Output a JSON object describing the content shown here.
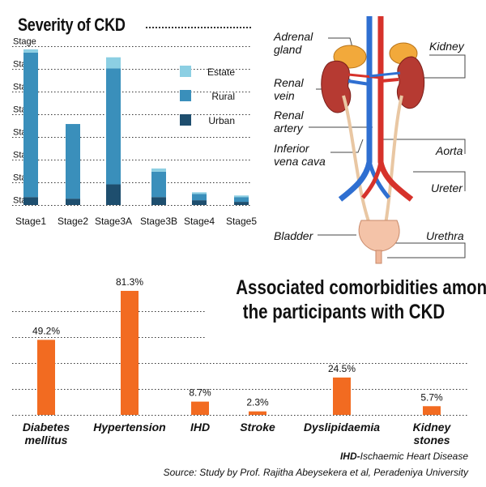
{
  "ckd_title": "Severity of CKD",
  "comorb_title_line1": "Associated comorbidities among",
  "comorb_title_line2": "the participants with CKD",
  "anatomy_labels": {
    "adrenal": "Adrenal",
    "gland": "gland",
    "kidney": "Kidney",
    "renal1": "Renal",
    "vein": "vein",
    "renal2": "Renal",
    "artery": "artery",
    "inferior": "Inferior",
    "vena_cava": "vena cava",
    "aorta": "Aorta",
    "ureter": "Ureter",
    "bladder": "Bladder",
    "urethra": "Urethra"
  },
  "footnote": {
    "ihd_abbr": "IHD-",
    "ihd_def": "Ischaemic Heart Disease",
    "source": "Source: Study by Prof. Rajitha Abeysekera et al, Peradeniya University"
  },
  "colors": {
    "estate": "#8ccfe3",
    "rural": "#3a8fbb",
    "urban": "#1e4e6e",
    "comorbidity": "#f26b21",
    "grid": "#333333"
  },
  "chart_data": [
    {
      "type": "bar",
      "stacked": true,
      "title": "Severity of CKD",
      "categories": [
        "Stage1",
        "Stage2",
        "Stage3A",
        "Stage3B",
        "Stage4",
        "Stage5"
      ],
      "series": [
        {
          "name": "Urban",
          "values": [
            5,
            4,
            13,
            5,
            3,
            2
          ]
        },
        {
          "name": "Rural",
          "values": [
            91,
            47,
            73,
            16,
            4,
            3
          ]
        },
        {
          "name": "Estate",
          "values": [
            2,
            0,
            7,
            2,
            1,
            1
          ]
        }
      ],
      "legend_order": [
        "Estate",
        "Rural",
        "Urban"
      ],
      "legend_position": "top-right",
      "y_axis_labels": [
        "Stage",
        "Stage",
        "Stage",
        "Stage",
        "Stage",
        "Stage",
        "Stage",
        "Stage"
      ],
      "ylim": [
        0,
        100
      ],
      "grid": true
    },
    {
      "type": "bar",
      "title": "Associated comorbidities among the participants with CKD",
      "categories": [
        "Diabetes mellitus",
        "Hypertension",
        "IHD",
        "Stroke",
        "Dyslipidaemia",
        "Kidney stones"
      ],
      "category_lines": [
        [
          "Diabetes",
          "mellitus"
        ],
        [
          "Hypertension"
        ],
        [
          "IHD"
        ],
        [
          "Stroke"
        ],
        [
          "Dyslipidaemia"
        ],
        [
          "Kidney",
          "stones"
        ]
      ],
      "values": [
        49.2,
        81.3,
        8.7,
        2.3,
        24.5,
        5.7
      ],
      "value_labels": [
        "49.2%",
        "81.3%",
        "8.7%",
        "2.3%",
        "24.5%",
        "5.7%"
      ],
      "ylim": [
        0,
        85
      ],
      "grid": true
    }
  ]
}
